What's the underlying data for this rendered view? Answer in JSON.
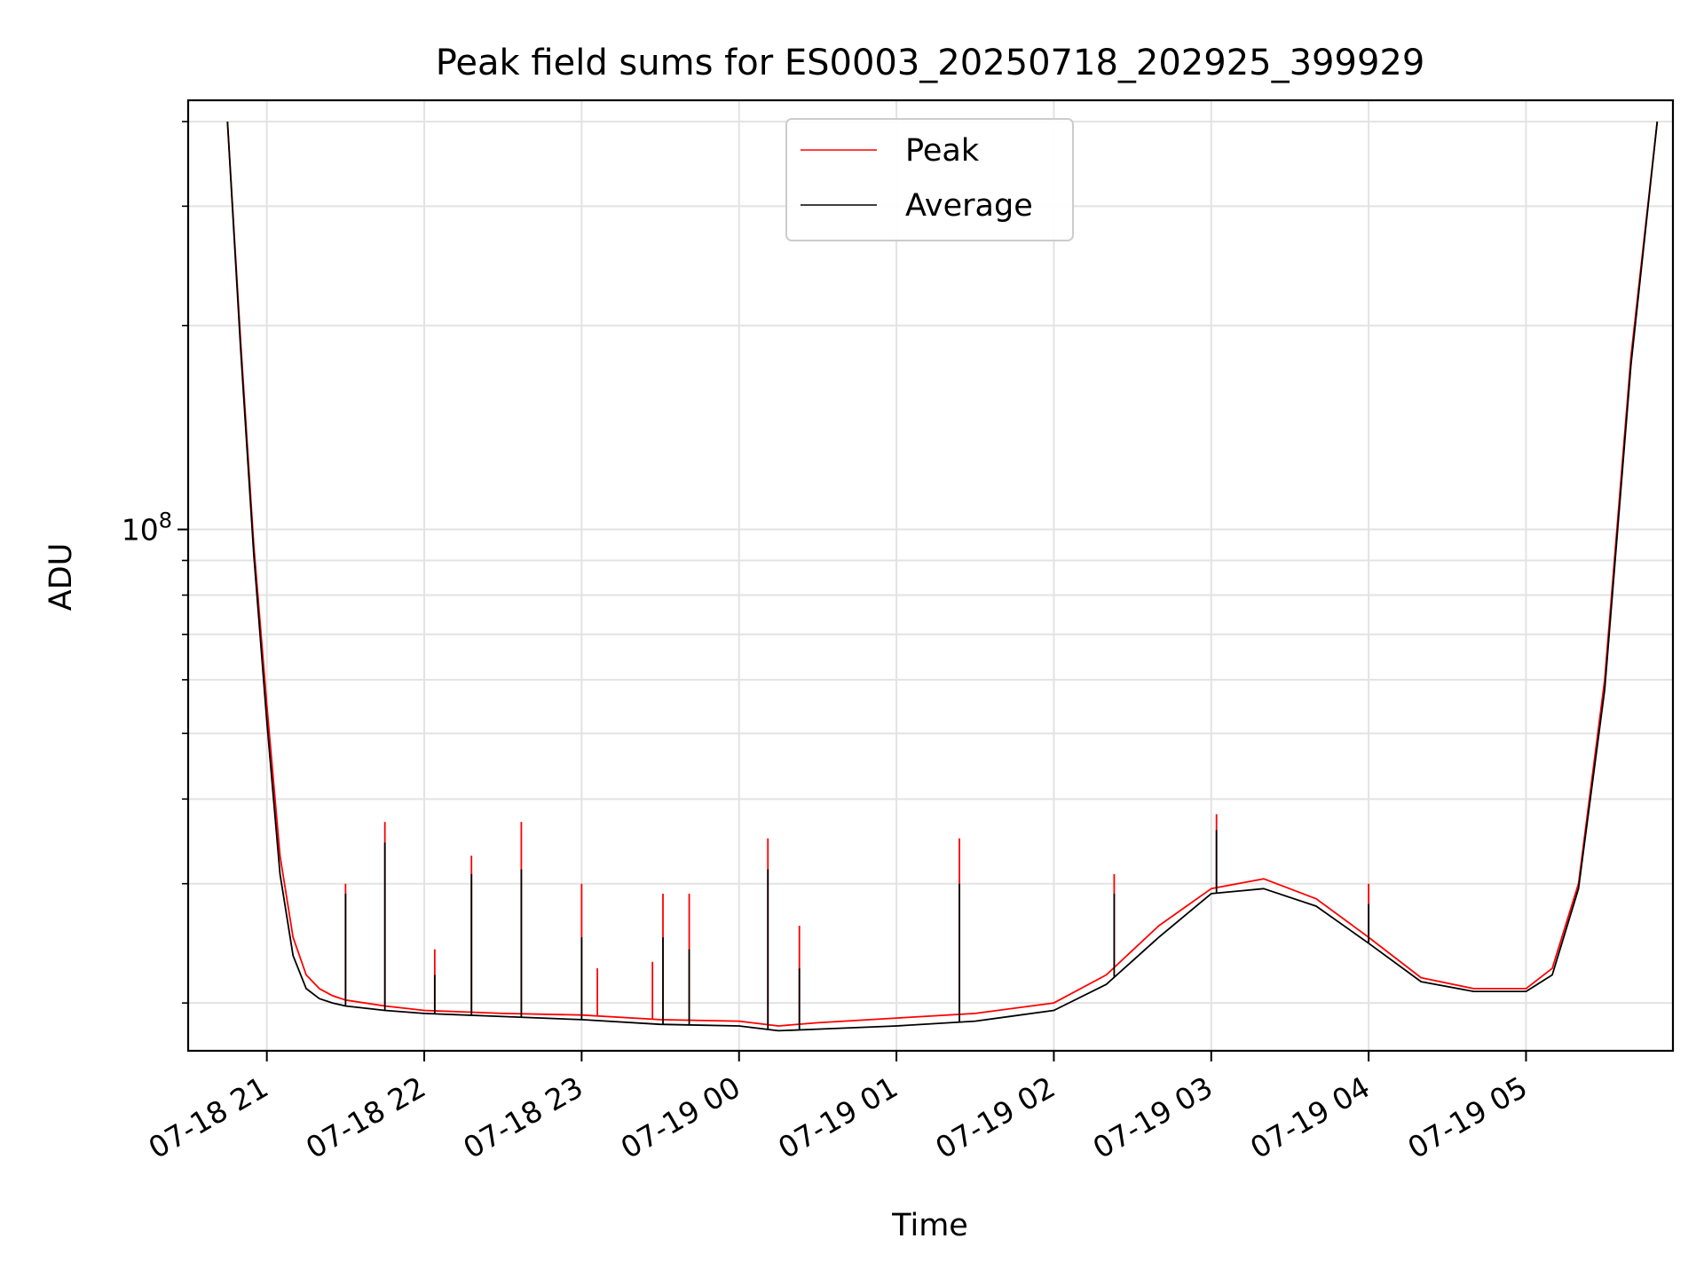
{
  "chart_data": {
    "type": "line",
    "title": "Peak field sums for ES0003_20250718_202925_399929",
    "xlabel": "Time",
    "ylabel": "ADU",
    "yscale": "log",
    "ylim": [
      17000000,
      430000000
    ],
    "xlim": [
      "2025-07-18T20:30",
      "2025-07-19T05:56"
    ],
    "grid": true,
    "legend_position": "top-center",
    "x_ticks": [
      "07-18 21",
      "07-18 22",
      "07-18 23",
      "07-19 00",
      "07-19 01",
      "07-19 02",
      "07-19 03",
      "07-19 04",
      "07-19 05"
    ],
    "y_ticks": [
      {
        "value": 100000000,
        "base": "10",
        "exponent": "8"
      }
    ],
    "series": [
      {
        "name": "Peak",
        "color": "#ff0000",
        "x": [
          "2025-07-18T20:45",
          "2025-07-18T20:50",
          "2025-07-18T20:55",
          "2025-07-18T21:00",
          "2025-07-18T21:05",
          "2025-07-18T21:10",
          "2025-07-18T21:15",
          "2025-07-18T21:20",
          "2025-07-18T21:25",
          "2025-07-18T21:30",
          "2025-07-18T21:45",
          "2025-07-18T22:00",
          "2025-07-18T22:30",
          "2025-07-18T23:00",
          "2025-07-18T23:30",
          "2025-07-19T00:00",
          "2025-07-19T00:15",
          "2025-07-19T00:30",
          "2025-07-19T01:00",
          "2025-07-19T01:30",
          "2025-07-19T02:00",
          "2025-07-19T02:20",
          "2025-07-19T02:40",
          "2025-07-19T03:00",
          "2025-07-19T03:20",
          "2025-07-19T03:40",
          "2025-07-19T04:00",
          "2025-07-19T04:20",
          "2025-07-19T04:40",
          "2025-07-19T05:00",
          "2025-07-19T05:10",
          "2025-07-19T05:20",
          "2025-07-19T05:30",
          "2025-07-19T05:40",
          "2025-07-19T05:50"
        ],
        "values": [
          400000000,
          190000000,
          95000000,
          55000000,
          33000000,
          25000000,
          22000000,
          21000000,
          20500000,
          20200000,
          19800000,
          19500000,
          19300000,
          19200000,
          18900000,
          18800000,
          18500000,
          18700000,
          19000000,
          19300000,
          20000000,
          22000000,
          26000000,
          29500000,
          30500000,
          28500000,
          25000000,
          21800000,
          21000000,
          21000000,
          22500000,
          30000000,
          60000000,
          180000000,
          400000000
        ],
        "spikes": [
          {
            "x": "2025-07-18T21:30",
            "y": 30000000
          },
          {
            "x": "2025-07-18T21:45",
            "y": 37000000
          },
          {
            "x": "2025-07-18T22:04",
            "y": 24000000
          },
          {
            "x": "2025-07-18T22:18",
            "y": 33000000
          },
          {
            "x": "2025-07-18T22:37",
            "y": 37000000
          },
          {
            "x": "2025-07-18T23:00",
            "y": 30000000
          },
          {
            "x": "2025-07-18T23:06",
            "y": 22500000
          },
          {
            "x": "2025-07-18T23:27",
            "y": 23000000
          },
          {
            "x": "2025-07-18T23:31",
            "y": 29000000
          },
          {
            "x": "2025-07-18T23:41",
            "y": 29000000
          },
          {
            "x": "2025-07-19T00:11",
            "y": 35000000
          },
          {
            "x": "2025-07-19T00:23",
            "y": 26000000
          },
          {
            "x": "2025-07-19T01:24",
            "y": 35000000
          },
          {
            "x": "2025-07-19T02:23",
            "y": 31000000
          },
          {
            "x": "2025-07-19T03:02",
            "y": 38000000
          },
          {
            "x": "2025-07-19T04:00",
            "y": 30000000
          }
        ]
      },
      {
        "name": "Average",
        "color": "#000000",
        "x": [
          "2025-07-18T20:45",
          "2025-07-18T20:50",
          "2025-07-18T20:55",
          "2025-07-18T21:00",
          "2025-07-18T21:05",
          "2025-07-18T21:10",
          "2025-07-18T21:15",
          "2025-07-18T21:20",
          "2025-07-18T21:25",
          "2025-07-18T21:30",
          "2025-07-18T21:45",
          "2025-07-18T22:00",
          "2025-07-18T22:30",
          "2025-07-18T23:00",
          "2025-07-18T23:30",
          "2025-07-19T00:00",
          "2025-07-19T00:15",
          "2025-07-19T00:30",
          "2025-07-19T01:00",
          "2025-07-19T01:30",
          "2025-07-19T02:00",
          "2025-07-19T02:20",
          "2025-07-19T02:40",
          "2025-07-19T03:00",
          "2025-07-19T03:20",
          "2025-07-19T03:40",
          "2025-07-19T04:00",
          "2025-07-19T04:20",
          "2025-07-19T04:40",
          "2025-07-19T05:00",
          "2025-07-19T05:10",
          "2025-07-19T05:20",
          "2025-07-19T05:30",
          "2025-07-19T05:40",
          "2025-07-19T05:50"
        ],
        "values": [
          400000000,
          185000000,
          92000000,
          52000000,
          31000000,
          23500000,
          21000000,
          20300000,
          20000000,
          19800000,
          19500000,
          19300000,
          19100000,
          18900000,
          18600000,
          18500000,
          18200000,
          18300000,
          18500000,
          18800000,
          19500000,
          21300000,
          25000000,
          29000000,
          29500000,
          27800000,
          24500000,
          21500000,
          20800000,
          20800000,
          22000000,
          29500000,
          58000000,
          175000000,
          400000000
        ],
        "spikes": [
          {
            "x": "2025-07-18T21:30",
            "y": 29000000
          },
          {
            "x": "2025-07-18T21:45",
            "y": 34500000
          },
          {
            "x": "2025-07-18T22:04",
            "y": 22000000
          },
          {
            "x": "2025-07-18T22:18",
            "y": 31000000
          },
          {
            "x": "2025-07-18T22:37",
            "y": 31500000
          },
          {
            "x": "2025-07-18T23:00",
            "y": 25000000
          },
          {
            "x": "2025-07-18T23:31",
            "y": 25000000
          },
          {
            "x": "2025-07-18T23:41",
            "y": 24000000
          },
          {
            "x": "2025-07-19T00:11",
            "y": 31500000
          },
          {
            "x": "2025-07-19T00:23",
            "y": 22500000
          },
          {
            "x": "2025-07-19T01:24",
            "y": 30000000
          },
          {
            "x": "2025-07-19T02:23",
            "y": 29000000
          },
          {
            "x": "2025-07-19T03:02",
            "y": 36000000
          },
          {
            "x": "2025-07-19T04:00",
            "y": 28000000
          }
        ]
      }
    ]
  }
}
